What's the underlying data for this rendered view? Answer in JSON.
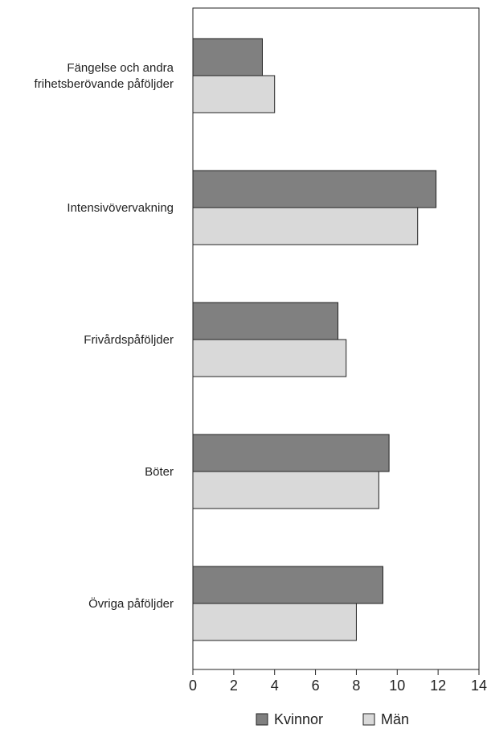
{
  "chart_data": {
    "type": "bar",
    "orientation": "horizontal",
    "categories": [
      [
        "Fängelse och andra",
        "frihetsberövande påföljder"
      ],
      [
        "Intensivövervakning"
      ],
      [
        "Frivårdspåföljder"
      ],
      [
        "Böter"
      ],
      [
        "Övriga påföljder"
      ]
    ],
    "series": [
      {
        "name": "Kvinnor",
        "color": "#808080",
        "values": [
          3.4,
          11.9,
          7.1,
          9.6,
          9.3
        ]
      },
      {
        "name": "Män",
        "color": "#d9d9d9",
        "values": [
          4.0,
          11.0,
          7.5,
          9.1,
          8.0
        ]
      }
    ],
    "xlim": [
      0,
      14
    ],
    "xticks": [
      "0",
      "2",
      "4",
      "6",
      "8",
      "10",
      "12",
      "14"
    ],
    "title": "",
    "xlabel": "",
    "ylabel": "",
    "grid": false,
    "legend_position": "bottom"
  }
}
